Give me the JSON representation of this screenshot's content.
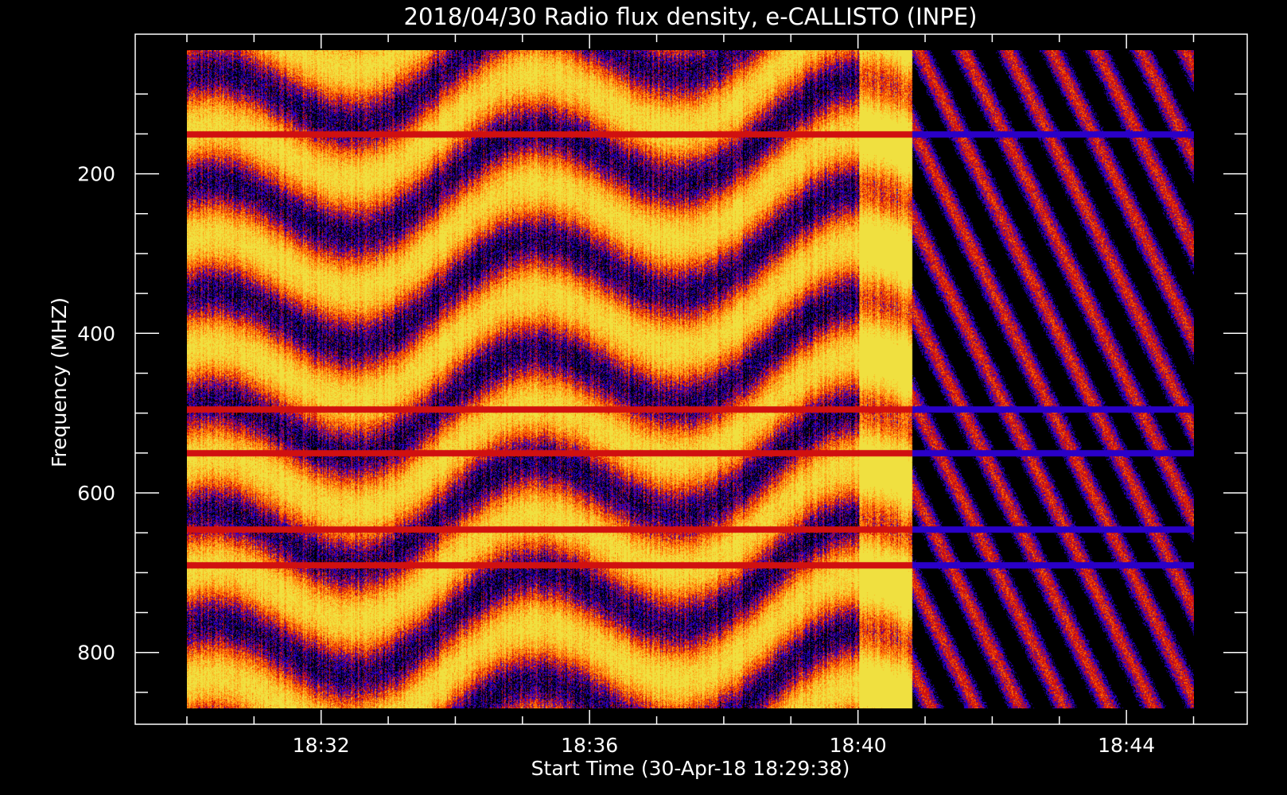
{
  "chart_data": {
    "type": "heatmap",
    "title": "2018/04/30  Radio flux density, e-CALLISTO (INPE)",
    "xlabel": "Start Time (30-Apr-18 18:29:38)",
    "ylabel": "Frequency (MHZ)",
    "x_ticks": [
      "18:32",
      "18:36",
      "18:40",
      "18:44"
    ],
    "x_tick_minutes": [
      32,
      36,
      40,
      44
    ],
    "x_minor_tick_minutes": [
      30,
      31,
      32,
      33,
      34,
      35,
      36,
      37,
      38,
      39,
      40,
      41,
      42,
      43,
      44,
      45
    ],
    "y_ticks": [
      200,
      400,
      600,
      800
    ],
    "y_minor_ticks": [
      100,
      150,
      200,
      250,
      300,
      350,
      400,
      450,
      500,
      550,
      600,
      650,
      700,
      750,
      800,
      850
    ],
    "x_range_minutes": [
      29.23,
      45.8
    ],
    "y_range_mhz": [
      25,
      890
    ],
    "data_x_range_minutes": [
      30.0,
      45.0
    ],
    "data_y_range_mhz": [
      45,
      870
    ],
    "y_axis_inverted": true,
    "colormap": [
      "#000000",
      "#2a00c8",
      "#d01010",
      "#ff6a00",
      "#ffb020",
      "#f0e040"
    ],
    "features": {
      "interference_bands_mhz": [
        150,
        495,
        550,
        645,
        690
      ],
      "quiet_transition_minute": 40.8
    }
  }
}
